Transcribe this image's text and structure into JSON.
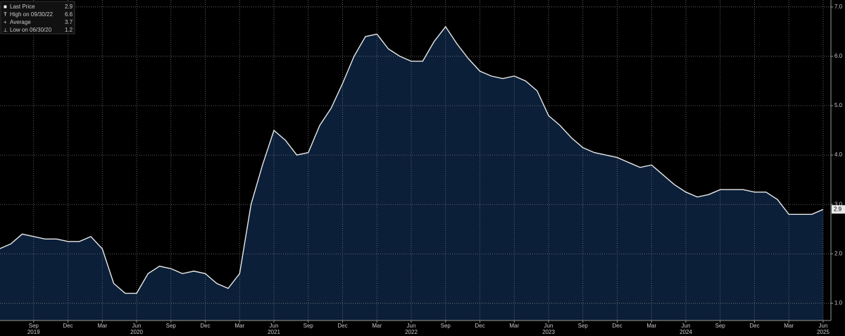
{
  "chart_data": {
    "type": "area",
    "x": [
      "2019-06",
      "2019-07",
      "2019-08",
      "2019-09",
      "2019-10",
      "2019-11",
      "2019-12",
      "2020-01",
      "2020-02",
      "2020-03",
      "2020-04",
      "2020-05",
      "2020-06",
      "2020-07",
      "2020-08",
      "2020-09",
      "2020-10",
      "2020-11",
      "2020-12",
      "2021-01",
      "2021-02",
      "2021-03",
      "2021-04",
      "2021-05",
      "2021-06",
      "2021-07",
      "2021-08",
      "2021-09",
      "2021-10",
      "2021-11",
      "2021-12",
      "2022-01",
      "2022-02",
      "2022-03",
      "2022-04",
      "2022-05",
      "2022-06",
      "2022-07",
      "2022-08",
      "2022-09",
      "2022-10",
      "2022-11",
      "2022-12",
      "2023-01",
      "2023-02",
      "2023-03",
      "2023-04",
      "2023-05",
      "2023-06",
      "2023-07",
      "2023-08",
      "2023-09",
      "2023-10",
      "2023-11",
      "2023-12",
      "2024-01",
      "2024-02",
      "2024-03",
      "2024-04",
      "2024-05",
      "2024-06",
      "2024-07",
      "2024-08",
      "2024-09",
      "2024-10",
      "2024-11",
      "2024-12",
      "2025-01",
      "2025-02",
      "2025-03",
      "2025-04",
      "2025-05",
      "2025-06"
    ],
    "series": [
      {
        "name": "Last Price",
        "color": "#e8e8e8",
        "fill": "#0b1f38",
        "values": [
          2.1,
          2.2,
          2.4,
          2.35,
          2.3,
          2.3,
          2.25,
          2.25,
          2.35,
          2.1,
          1.4,
          1.2,
          1.2,
          1.6,
          1.75,
          1.7,
          1.6,
          1.65,
          1.6,
          1.4,
          1.3,
          1.6,
          3.0,
          3.8,
          4.5,
          4.3,
          4.0,
          4.05,
          4.6,
          4.95,
          5.45,
          6.0,
          6.4,
          6.45,
          6.15,
          6.0,
          5.9,
          5.9,
          6.3,
          6.6,
          6.25,
          5.95,
          5.7,
          5.6,
          5.55,
          5.6,
          5.5,
          5.3,
          4.8,
          4.6,
          4.35,
          4.15,
          4.05,
          4.0,
          3.95,
          3.85,
          3.75,
          3.8,
          3.6,
          3.4,
          3.25,
          3.15,
          3.2,
          3.3,
          3.3,
          3.3,
          3.25,
          3.25,
          3.1,
          2.8,
          2.8,
          2.8,
          2.9
        ]
      }
    ],
    "legend": [
      {
        "label": "Last Price",
        "value": 2.9
      },
      {
        "label": "High on 09/30/22",
        "value": 6.6
      },
      {
        "label": "Average",
        "value": 3.7
      },
      {
        "label": "Low on 06/30/20",
        "value": 1.2
      }
    ],
    "ylim": [
      0.65,
      7.14
    ],
    "yticks": [
      {
        "value": 1,
        "label": "1.0"
      },
      {
        "value": 2,
        "label": "2.0"
      },
      {
        "value": 3,
        "label": "3.0"
      },
      {
        "value": 4,
        "label": "4.0"
      },
      {
        "value": 5,
        "label": "5.0"
      },
      {
        "value": 6,
        "label": "6.0"
      },
      {
        "value": 7,
        "label": "7.0"
      }
    ],
    "xticks": [
      {
        "value": "2019-09",
        "label": "Sep"
      },
      {
        "value": "2019-12",
        "label": "Dec"
      },
      {
        "value": "2020-03",
        "label": "Mar"
      },
      {
        "value": "2020-06",
        "label": "Jun"
      },
      {
        "value": "2020-09",
        "label": "Sep"
      },
      {
        "value": "2020-12",
        "label": "Dec"
      },
      {
        "value": "2021-03",
        "label": "Mar"
      },
      {
        "value": "2021-06",
        "label": "Jun"
      },
      {
        "value": "2021-09",
        "label": "Sep"
      },
      {
        "value": "2021-12",
        "label": "Dec"
      },
      {
        "value": "2022-03",
        "label": "Mar"
      },
      {
        "value": "2022-06",
        "label": "Jun"
      },
      {
        "value": "2022-09",
        "label": "Sep"
      },
      {
        "value": "2022-12",
        "label": "Dec"
      },
      {
        "value": "2023-03",
        "label": "Mar"
      },
      {
        "value": "2023-06",
        "label": "Jun"
      },
      {
        "value": "2023-09",
        "label": "Sep"
      },
      {
        "value": "2023-12",
        "label": "Dec"
      },
      {
        "value": "2024-03",
        "label": "Mar"
      },
      {
        "value": "2024-06",
        "label": "Jun"
      },
      {
        "value": "2024-09",
        "label": "Sep"
      },
      {
        "value": "2024-12",
        "label": "Dec"
      },
      {
        "value": "2025-03",
        "label": "Mar"
      },
      {
        "value": "2025-06",
        "label": "Jun"
      }
    ],
    "year_labels": [
      {
        "value": "2019-09",
        "label": "2019"
      },
      {
        "value": "2020-06",
        "label": "2020"
      },
      {
        "value": "2021-06",
        "label": "2021"
      },
      {
        "value": "2022-06",
        "label": "2022"
      },
      {
        "value": "2023-06",
        "label": "2023"
      },
      {
        "value": "2024-06",
        "label": "2024"
      },
      {
        "value": "2025-06",
        "label": "2025"
      }
    ],
    "grid": true
  }
}
